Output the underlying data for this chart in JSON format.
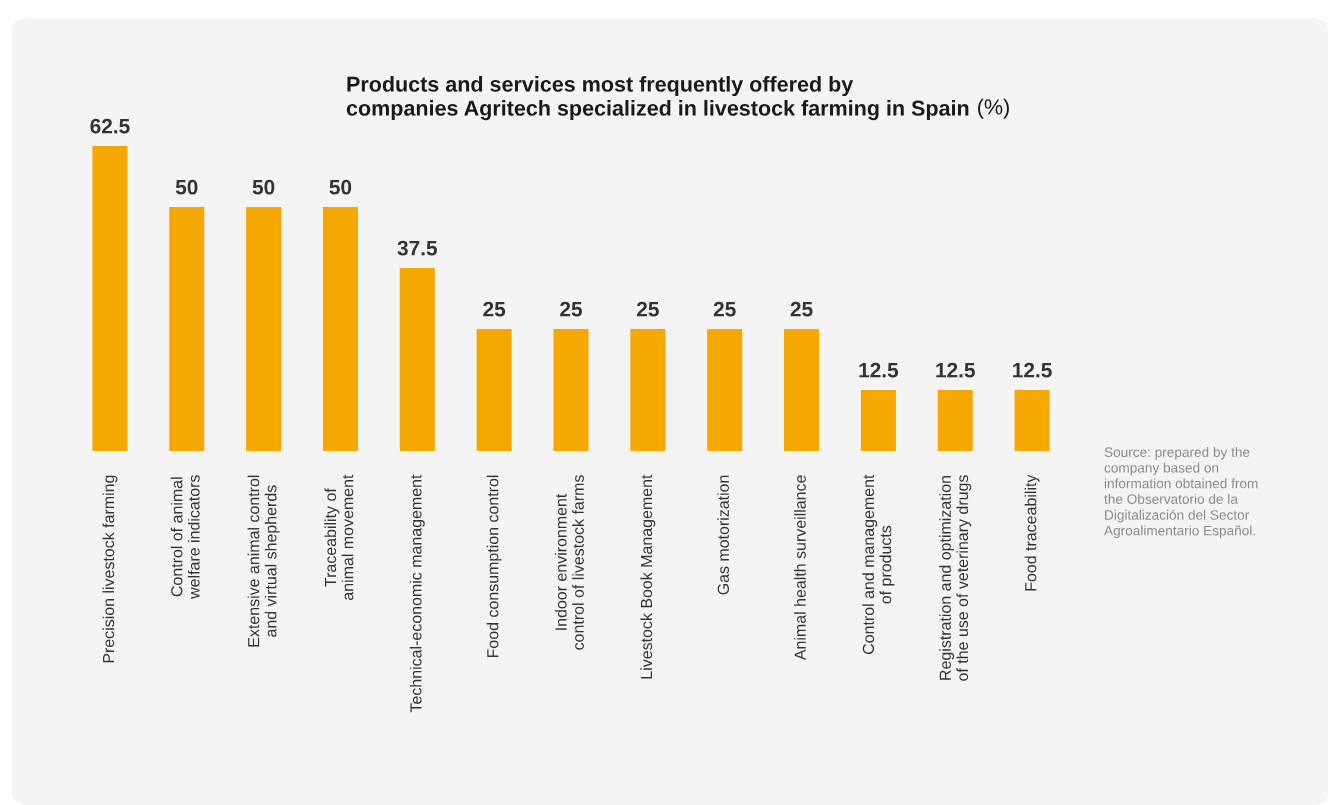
{
  "chart_data": {
    "type": "bar",
    "title": "Products and services most frequently offered by\ncompanies Agritech specialized in livestock farming in Spain",
    "subtitle": "(%)",
    "categories": [
      "Precision livestock farming",
      "Control of animal\nwelfare indicators",
      "Extensive animal control\nand virtual shepherds",
      "Traceability of\nanimal movement",
      "Technical-economic management",
      "Food consumption control",
      "Indoor environment\ncontrol of livestock farms",
      "Livestock Book Management",
      "Gas motorization",
      "Animal health surveillance",
      "Control and management\nof products",
      "Registration and optimization\nof the use of veterinary drugs",
      "Food traceability"
    ],
    "values": [
      62.5,
      50,
      50,
      50,
      37.5,
      25,
      25,
      25,
      25,
      25,
      12.5,
      12.5,
      12.5
    ],
    "color": "#f5a800",
    "data_labels": true,
    "grid": false,
    "legend": false,
    "tick_labels": "x",
    "annotations": [
      "Source: prepared by the\ncompany based on\ninformation obtained from\nthe Observatorio de la\nDigitalización del Sector\nAgroalimentario Español."
    ]
  }
}
